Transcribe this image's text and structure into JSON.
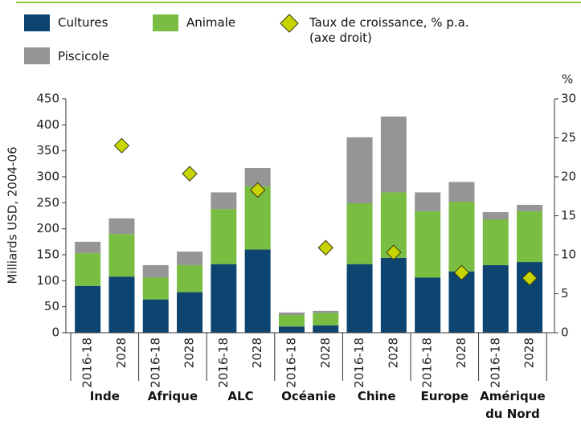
{
  "chart_data": {
    "type": "bar",
    "stacked": true,
    "ylabel": "Milliards USD, 2004-06",
    "y2label": "%",
    "categories": [
      "2016-18",
      "2028",
      "2016-18",
      "2028",
      "2016-18",
      "2028",
      "2016-18",
      "2028",
      "2016-18",
      "2028",
      "2016-18",
      "2028",
      "2016-18",
      "2028"
    ],
    "groups": [
      "Inde",
      "Afrique",
      "ALC",
      "Océanie",
      "Chine",
      "Europe",
      "Amérique du Nord"
    ],
    "series": [
      {
        "name": "Cultures",
        "color": "#0d4470",
        "values": [
          90,
          108,
          64,
          78,
          132,
          160,
          12,
          14,
          132,
          144,
          106,
          118,
          130,
          136
        ]
      },
      {
        "name": "Animale",
        "color": "#79bd43",
        "values": [
          63,
          82,
          42,
          52,
          106,
          122,
          22,
          24,
          117,
          126,
          128,
          134,
          88,
          98
        ]
      },
      {
        "name": "Piscicole",
        "color": "#959595",
        "values": [
          22,
          30,
          24,
          26,
          32,
          35,
          5,
          4,
          127,
          146,
          36,
          38,
          14,
          12
        ]
      },
      {
        "name": "Taux de croissance, % p.a. (axe droit)",
        "color": "#c8d400",
        "axis": "y2",
        "marker": "diamond",
        "values": [
          null,
          24.0,
          null,
          20.4,
          null,
          18.3,
          null,
          10.9,
          null,
          10.3,
          null,
          7.7,
          null,
          7.0
        ]
      }
    ],
    "ylim": [
      0,
      450
    ],
    "yticks": [
      0,
      50,
      100,
      150,
      200,
      250,
      300,
      350,
      400,
      450
    ],
    "y2lim": [
      0,
      30
    ],
    "y2ticks": [
      0,
      5,
      10,
      15,
      20,
      25,
      30
    ]
  }
}
